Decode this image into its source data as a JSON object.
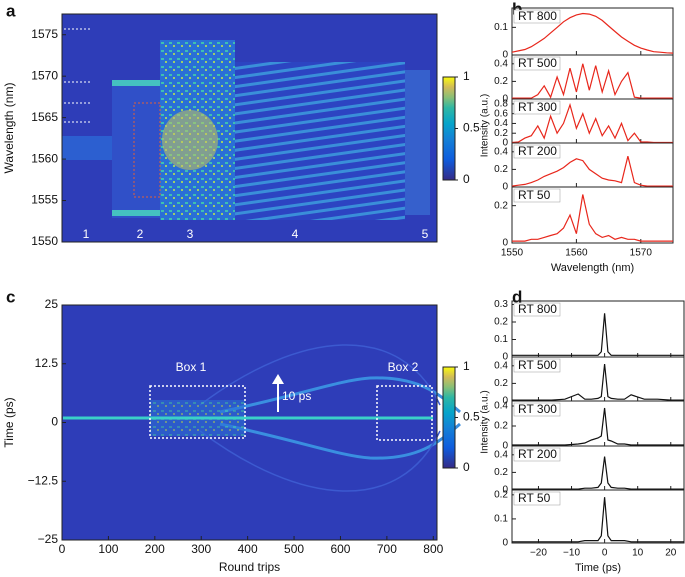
{
  "chart_data": [
    {
      "type": "heatmap",
      "panel_label": "a",
      "ylabel": "Wavelength (nm)",
      "ylim": [
        1550,
        1577.5
      ],
      "yticks": [
        1550,
        1555,
        1560,
        1565,
        1570,
        1575
      ],
      "regions": [
        "1",
        "2",
        "3",
        "4",
        "5"
      ],
      "colorbar_lim": [
        0,
        1
      ],
      "colorbar_ticks": [
        0,
        0.5,
        1
      ]
    },
    {
      "type": "spectra",
      "panel_label": "b",
      "xlabel": "Wavelength (nm)",
      "ylabel": "Intensity (a.u.)",
      "xlim": [
        1550,
        1575
      ],
      "xticks": [
        1550,
        1560,
        1570
      ],
      "x": [
        1550,
        1551,
        1552,
        1553,
        1554,
        1555,
        1556,
        1557,
        1558,
        1559,
        1560,
        1561,
        1562,
        1563,
        1564,
        1565,
        1566,
        1567,
        1568,
        1569,
        1570,
        1571,
        1572,
        1573,
        1574,
        1575
      ],
      "subplots": [
        {
          "name": "RT 800",
          "color": "#e8271c",
          "ylim": [
            0,
            0.17
          ],
          "yticks": [
            0,
            0.1
          ],
          "values": [
            0.01,
            0.015,
            0.02,
            0.03,
            0.045,
            0.06,
            0.08,
            0.1,
            0.12,
            0.135,
            0.145,
            0.15,
            0.148,
            0.14,
            0.125,
            0.105,
            0.085,
            0.065,
            0.05,
            0.035,
            0.025,
            0.018,
            0.012,
            0.01,
            0.008,
            0.007
          ]
        },
        {
          "name": "RT 500",
          "color": "#e8271c",
          "ylim": [
            0,
            0.5
          ],
          "yticks": [
            0,
            0.2,
            0.4
          ],
          "values": [
            0.01,
            0.01,
            0.01,
            0.01,
            0.05,
            0.15,
            0.02,
            0.25,
            0.05,
            0.35,
            0.08,
            0.4,
            0.1,
            0.38,
            0.08,
            0.32,
            0.05,
            0.2,
            0.3,
            0.02,
            0.01,
            0.01,
            0.01,
            0.01,
            0.01,
            0.01
          ]
        },
        {
          "name": "RT 300",
          "color": "#e8271c",
          "ylim": [
            0,
            0.9
          ],
          "yticks": [
            0,
            0.2,
            0.4,
            0.6,
            0.8
          ],
          "values": [
            0.01,
            0.02,
            0.1,
            0.15,
            0.35,
            0.1,
            0.55,
            0.2,
            0.4,
            0.78,
            0.3,
            0.6,
            0.2,
            0.5,
            0.15,
            0.35,
            0.1,
            0.4,
            0.05,
            0.2,
            0.02,
            0.02,
            0.01,
            0.01,
            0.01,
            0.01
          ]
        },
        {
          "name": "RT 200",
          "color": "#e8271c",
          "ylim": [
            0,
            0.5
          ],
          "yticks": [
            0,
            0.2,
            0.4
          ],
          "values": [
            0.01,
            0.02,
            0.03,
            0.05,
            0.08,
            0.12,
            0.15,
            0.18,
            0.22,
            0.28,
            0.32,
            0.3,
            0.2,
            0.15,
            0.1,
            0.08,
            0.07,
            0.05,
            0.35,
            0.05,
            0.02,
            0.01,
            0.01,
            0.01,
            0.01,
            0.01
          ]
        },
        {
          "name": "RT 50",
          "color": "#e8271c",
          "ylim": [
            0,
            0.3
          ],
          "yticks": [
            0,
            0.2
          ],
          "values": [
            0.01,
            0.01,
            0.01,
            0.02,
            0.02,
            0.03,
            0.04,
            0.05,
            0.08,
            0.15,
            0.05,
            0.26,
            0.1,
            0.05,
            0.03,
            0.04,
            0.02,
            0.03,
            0.02,
            0.02,
            0.01,
            0.01,
            0.01,
            0.01,
            0.01,
            0.01
          ]
        }
      ]
    },
    {
      "type": "heatmap",
      "panel_label": "c",
      "xlabel": "Round trips",
      "ylabel": "Time (ps)",
      "xlim": [
        0,
        808
      ],
      "xticks": [
        0,
        100,
        200,
        300,
        400,
        500,
        600,
        700,
        800
      ],
      "ylim": [
        -25,
        25
      ],
      "yticks": [
        {
          "value": -25,
          "label": "−25"
        },
        {
          "value": -12.5,
          "label": "−12.5"
        },
        0,
        12.5,
        25
      ],
      "annotations": [
        "Box 1",
        "Box 2",
        "10 ps"
      ],
      "colorbar_lim": [
        0,
        1
      ],
      "colorbar_ticks": [
        0,
        0.5,
        1
      ]
    },
    {
      "type": "spectra",
      "panel_label": "d",
      "xlabel": "Time (ps)",
      "ylabel": "Intensity (a.u.)",
      "xlim": [
        -28,
        24
      ],
      "xticks": [
        {
          "value": -20,
          "label": "−20"
        },
        {
          "value": -10,
          "label": "−10"
        },
        0,
        10,
        20
      ],
      "x": [
        -28,
        -24,
        -20,
        -16,
        -12,
        -8,
        -6,
        -4,
        -2,
        -1,
        0,
        1,
        2,
        4,
        6,
        8,
        12,
        16,
        20,
        24
      ],
      "subplots": [
        {
          "name": "RT 800",
          "color": "#111111",
          "ylim": [
            0,
            0.32
          ],
          "yticks": [
            0,
            0.1,
            0.2,
            0.3
          ],
          "values": [
            0.01,
            0.01,
            0.01,
            0.01,
            0.01,
            0.01,
            0.01,
            0.01,
            0.01,
            0.03,
            0.25,
            0.03,
            0.01,
            0.01,
            0.01,
            0.01,
            0.01,
            0.01,
            0.01,
            0.01
          ]
        },
        {
          "name": "RT 500",
          "color": "#111111",
          "ylim": [
            0,
            0.5
          ],
          "yticks": [
            0,
            0.2,
            0.4
          ],
          "values": [
            0.01,
            0.01,
            0.01,
            0.01,
            0.02,
            0.08,
            0.02,
            0.02,
            0.03,
            0.05,
            0.42,
            0.05,
            0.03,
            0.02,
            0.02,
            0.07,
            0.02,
            0.02,
            0.01,
            0.01
          ]
        },
        {
          "name": "RT 300",
          "color": "#111111",
          "ylim": [
            0,
            0.45
          ],
          "yticks": [
            0,
            0.2,
            0.4
          ],
          "values": [
            0.01,
            0.01,
            0.01,
            0.01,
            0.01,
            0.02,
            0.03,
            0.06,
            0.08,
            0.1,
            0.38,
            0.06,
            0.05,
            0.02,
            0.02,
            0.01,
            0.01,
            0.01,
            0.01,
            0.01
          ]
        },
        {
          "name": "RT 200",
          "color": "#111111",
          "ylim": [
            0,
            0.5
          ],
          "yticks": [
            0,
            0.2,
            0.4
          ],
          "values": [
            0.01,
            0.01,
            0.01,
            0.01,
            0.01,
            0.01,
            0.02,
            0.02,
            0.03,
            0.08,
            0.38,
            0.08,
            0.03,
            0.02,
            0.02,
            0.01,
            0.01,
            0.01,
            0.01,
            0.01
          ]
        },
        {
          "name": "RT 50",
          "color": "#111111",
          "ylim": [
            0,
            0.22
          ],
          "yticks": [
            0,
            0.1,
            0.2
          ],
          "values": [
            0.005,
            0.005,
            0.005,
            0.005,
            0.005,
            0.005,
            0.01,
            0.01,
            0.01,
            0.03,
            0.19,
            0.03,
            0.01,
            0.01,
            0.01,
            0.005,
            0.005,
            0.005,
            0.005,
            0.005
          ]
        }
      ]
    }
  ]
}
